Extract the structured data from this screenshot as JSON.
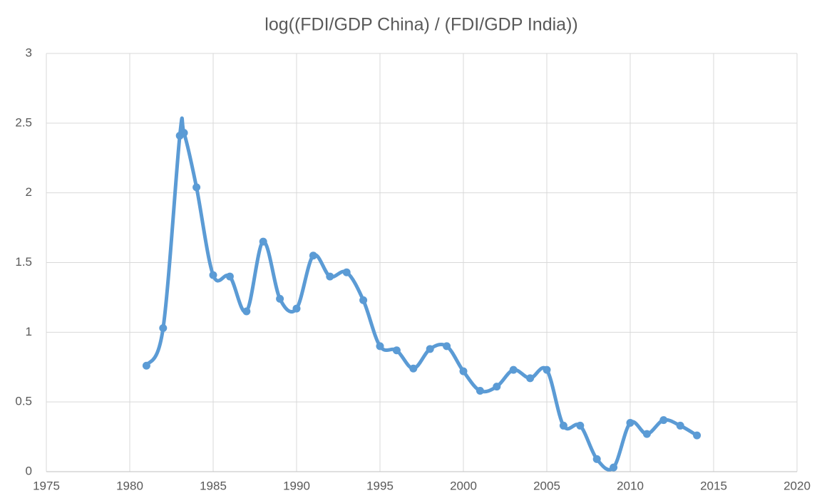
{
  "chart_data": {
    "type": "line",
    "title": "log((FDI/GDP China) / (FDI/GDP India))",
    "x": [
      1981,
      1982,
      1983,
      1983.25,
      1984,
      1985,
      1986,
      1987,
      1988,
      1989,
      1990,
      1991,
      1992,
      1993,
      1994,
      1995,
      1996,
      1997,
      1998,
      1999,
      2000,
      2001,
      2002,
      2003,
      2004,
      2005,
      2006,
      2007,
      2008,
      2009,
      2010,
      2011,
      2012,
      2013,
      2014
    ],
    "series": [
      {
        "color": "#5b9bd5",
        "values": [
          0.76,
          1.03,
          2.41,
          2.43,
          2.04,
          1.41,
          1.4,
          1.15,
          1.65,
          1.24,
          1.17,
          1.55,
          1.4,
          1.43,
          1.23,
          0.9,
          0.87,
          0.74,
          0.88,
          0.9,
          0.72,
          0.58,
          0.61,
          0.73,
          0.67,
          0.73,
          0.33,
          0.33,
          0.09,
          0.03,
          0.35,
          0.27,
          0.37,
          0.33,
          0.26
        ]
      }
    ],
    "xlim": [
      1975,
      2020
    ],
    "xticks": [
      1975,
      1980,
      1985,
      1990,
      1995,
      2000,
      2005,
      2010,
      2015,
      2020
    ],
    "ylim": [
      0,
      3
    ],
    "yticks": [
      0,
      0.5,
      1,
      1.5,
      2,
      2.5,
      3
    ],
    "grid": true
  }
}
